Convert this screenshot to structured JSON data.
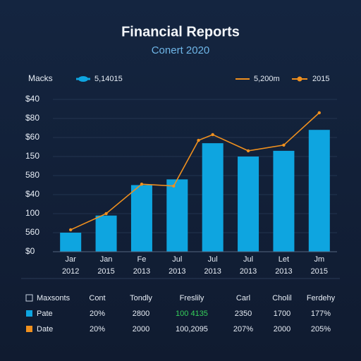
{
  "chart_data": {
    "type": "bar",
    "title": "Financial Reports",
    "subtitle": "Conert 2020",
    "legend": {
      "title": "Macks",
      "extra": "2015"
    },
    "categories": [
      "Jar",
      "Jan",
      "Fe",
      "Jul",
      "Jul",
      "Jul",
      "Let",
      "Jm"
    ],
    "category_sublabels": [
      "2012",
      "2015",
      "2013",
      "2013",
      "2013",
      "2013",
      "2013",
      "2015"
    ],
    "ylim": [
      0,
      8
    ],
    "yticks": [
      {
        "value": 0,
        "label": "$0"
      },
      {
        "value": 1,
        "label": "560"
      },
      {
        "value": 2,
        "label": "100"
      },
      {
        "value": 3,
        "label": "$40"
      },
      {
        "value": 4,
        "label": "580"
      },
      {
        "value": 5,
        "label": "150"
      },
      {
        "value": 6,
        "label": "$60"
      },
      {
        "value": 7,
        "label": "$80"
      },
      {
        "value": 8,
        "label": "$40"
      }
    ],
    "grid": true,
    "series": [
      {
        "name": "5,14015",
        "type": "bar",
        "color": "#0ea5e0",
        "values": [
          1.0,
          1.9,
          3.5,
          3.8,
          5.7,
          5.0,
          5.3,
          6.4
        ]
      },
      {
        "name": "5,200m",
        "type": "line",
        "color": "#f0901e",
        "x": [
          0,
          1,
          2,
          2.9,
          3.6,
          4,
          5,
          6,
          7
        ],
        "values": [
          1.15,
          2.0,
          3.55,
          3.45,
          5.85,
          6.15,
          5.3,
          5.6,
          7.3
        ]
      }
    ]
  },
  "table": {
    "header": [
      "Maxsonts",
      "Cont",
      "Tondly",
      "Freslily",
      "Carl",
      "Cholil",
      "Ferdehy"
    ],
    "rows": [
      [
        "Pate",
        "20%",
        "2800",
        "100 4135",
        "2350",
        "1700",
        "177%"
      ],
      [
        "Date",
        "20%",
        "2000",
        "100,2095",
        "207%",
        "2000",
        "205%"
      ]
    ]
  }
}
